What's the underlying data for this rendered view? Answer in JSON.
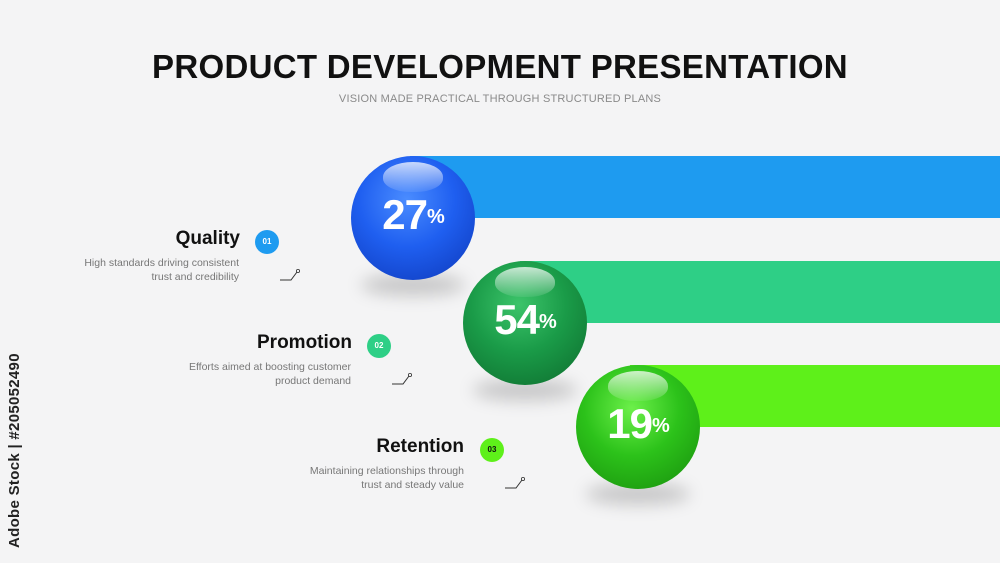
{
  "header": {
    "title": "PRODUCT DEVELOPMENT PRESENTATION",
    "subtitle": "VISION MADE PRACTICAL THROUGH STRUCTURED PLANS"
  },
  "items": [
    {
      "number": "01",
      "title": "Quality",
      "percent": "27",
      "unit": "%",
      "desc_line1": "High standards driving consistent",
      "desc_line2": "trust and credibility",
      "color": "#1e9bf0",
      "ball_color": "#1f5ff0"
    },
    {
      "number": "02",
      "title": "Promotion",
      "percent": "54",
      "unit": "%",
      "desc_line1": "Efforts aimed at boosting customer",
      "desc_line2": "product demand",
      "color": "#2ecf86",
      "ball_color": "#1a9b48"
    },
    {
      "number": "03",
      "title": "Retention",
      "percent": "19",
      "unit": "%",
      "desc_line1": "Maintaining relationships through",
      "desc_line2": "trust and steady value",
      "color": "#5ef01a",
      "ball_color": "#2cc21a"
    }
  ],
  "watermark": {
    "side_text": "Adobe Stock | #205052490"
  }
}
